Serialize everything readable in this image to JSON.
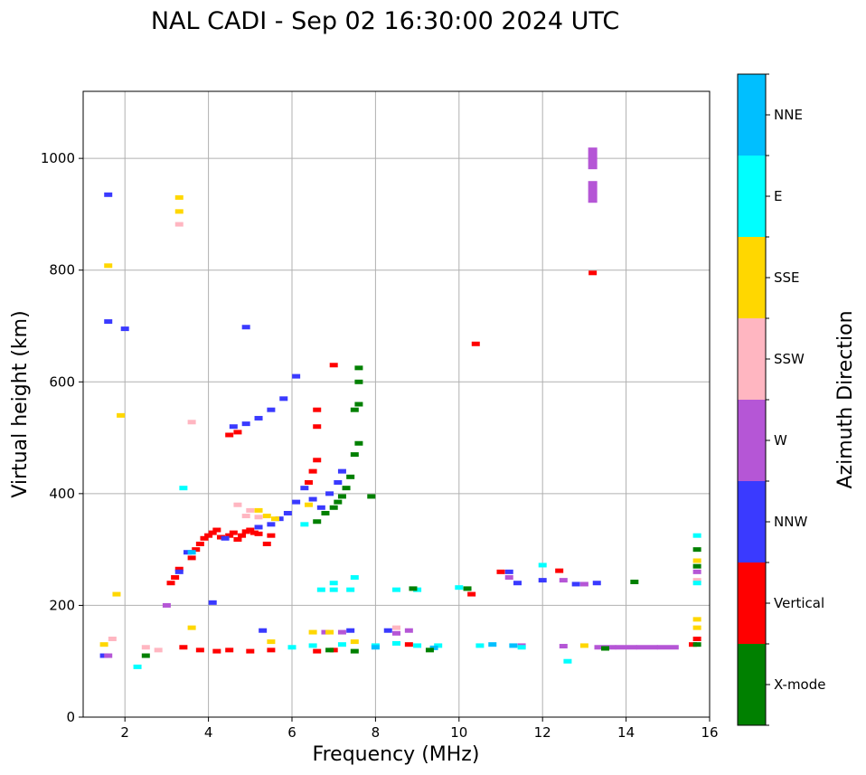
{
  "chart_data": {
    "type": "scatter",
    "title": "NAL CADI - Sep 02 16:30:00 2024 UTC",
    "xlabel": "Frequency (MHz)",
    "ylabel": "Virtual height (km)",
    "xlim": [
      1,
      16
    ],
    "ylim": [
      0,
      1120
    ],
    "xticks": [
      2,
      4,
      6,
      8,
      10,
      12,
      14,
      16
    ],
    "yticks": [
      0,
      200,
      400,
      600,
      800,
      1000
    ],
    "grid": true,
    "colorbar": {
      "label": "Azimuth Direction",
      "categories": [
        {
          "name": "X-mode",
          "color": "#008000"
        },
        {
          "name": "Vertical",
          "color": "#ff0000"
        },
        {
          "name": "NNW",
          "color": "#3a3aff"
        },
        {
          "name": "W",
          "color": "#b556d6"
        },
        {
          "name": "SSW",
          "color": "#ffb6c1"
        },
        {
          "name": "SSE",
          "color": "#ffd700"
        },
        {
          "name": "E",
          "color": "#00ffff"
        },
        {
          "name": "NNE",
          "color": "#00bfff"
        }
      ]
    },
    "series": [
      {
        "name": "Vertical",
        "points": [
          [
            3.1,
            240
          ],
          [
            3.2,
            250
          ],
          [
            3.3,
            265
          ],
          [
            3.6,
            285
          ],
          [
            3.7,
            300
          ],
          [
            3.8,
            310
          ],
          [
            3.9,
            320
          ],
          [
            4.0,
            325
          ],
          [
            4.1,
            330
          ],
          [
            4.2,
            335
          ],
          [
            4.3,
            322
          ],
          [
            4.5,
            325
          ],
          [
            4.6,
            330
          ],
          [
            4.7,
            318
          ],
          [
            4.8,
            325
          ],
          [
            4.9,
            332
          ],
          [
            5.0,
            335
          ],
          [
            5.1,
            330
          ],
          [
            5.2,
            328
          ],
          [
            5.4,
            310
          ],
          [
            5.5,
            325
          ],
          [
            6.4,
            420
          ],
          [
            6.5,
            440
          ],
          [
            6.6,
            460
          ],
          [
            6.6,
            520
          ],
          [
            6.6,
            550
          ],
          [
            4.5,
            505
          ],
          [
            4.7,
            510
          ],
          [
            10.4,
            668
          ],
          [
            13.2,
            795
          ],
          [
            3.4,
            125
          ],
          [
            3.8,
            120
          ],
          [
            4.2,
            118
          ],
          [
            4.5,
            120
          ],
          [
            5.0,
            118
          ],
          [
            5.5,
            120
          ],
          [
            6.6,
            118
          ],
          [
            7.0,
            120
          ],
          [
            8.8,
            130
          ],
          [
            15.6,
            130
          ],
          [
            15.7,
            140
          ],
          [
            10.3,
            220
          ],
          [
            11.0,
            260
          ],
          [
            12.4,
            262
          ],
          [
            7.0,
            630
          ]
        ]
      },
      {
        "name": "NNW",
        "points": [
          [
            3.3,
            260
          ],
          [
            3.5,
            295
          ],
          [
            4.4,
            320
          ],
          [
            5.2,
            340
          ],
          [
            5.5,
            345
          ],
          [
            5.7,
            355
          ],
          [
            5.9,
            365
          ],
          [
            6.1,
            385
          ],
          [
            6.3,
            410
          ],
          [
            6.5,
            390
          ],
          [
            6.7,
            375
          ],
          [
            6.9,
            400
          ],
          [
            7.1,
            420
          ],
          [
            7.2,
            440
          ],
          [
            4.6,
            520
          ],
          [
            4.9,
            525
          ],
          [
            5.2,
            535
          ],
          [
            5.5,
            550
          ],
          [
            5.8,
            570
          ],
          [
            6.1,
            610
          ],
          [
            1.6,
            935
          ],
          [
            4.9,
            698
          ],
          [
            2.0,
            695
          ],
          [
            1.6,
            708
          ],
          [
            4.1,
            205
          ],
          [
            5.3,
            155
          ],
          [
            7.4,
            155
          ],
          [
            8.3,
            155
          ],
          [
            11.2,
            260
          ],
          [
            11.4,
            240
          ],
          [
            12.0,
            245
          ],
          [
            12.8,
            238
          ],
          [
            13.3,
            240
          ],
          [
            1.5,
            110
          ]
        ]
      },
      {
        "name": "W",
        "points": [
          [
            13.2,
            1000
          ],
          [
            13.2,
            940
          ],
          [
            14.0,
            125
          ],
          [
            14.5,
            125
          ],
          [
            15.0,
            125
          ],
          [
            13.5,
            125
          ],
          [
            12.5,
            127
          ],
          [
            11.5,
            128
          ],
          [
            8.8,
            155
          ],
          [
            8.5,
            150
          ],
          [
            7.2,
            152
          ],
          [
            6.8,
            152
          ],
          [
            11.2,
            250
          ],
          [
            12.5,
            245
          ],
          [
            13.0,
            238
          ],
          [
            15.7,
            260
          ],
          [
            3.0,
            200
          ],
          [
            1.6,
            110
          ]
        ]
      },
      {
        "name": "SSW",
        "points": [
          [
            4.9,
            360
          ],
          [
            5.0,
            370
          ],
          [
            5.2,
            358
          ],
          [
            4.7,
            380
          ],
          [
            3.3,
            882
          ],
          [
            3.6,
            528
          ],
          [
            2.5,
            125
          ],
          [
            2.8,
            120
          ],
          [
            8.5,
            160
          ],
          [
            1.7,
            140
          ],
          [
            15.7,
            245
          ]
        ]
      },
      {
        "name": "SSE",
        "points": [
          [
            5.2,
            370
          ],
          [
            5.4,
            360
          ],
          [
            5.6,
            355
          ],
          [
            6.4,
            380
          ],
          [
            6.5,
            152
          ],
          [
            6.9,
            152
          ],
          [
            3.3,
            930
          ],
          [
            3.3,
            905
          ],
          [
            1.6,
            808
          ],
          [
            1.9,
            540
          ],
          [
            1.8,
            220
          ],
          [
            1.5,
            130
          ],
          [
            3.6,
            160
          ],
          [
            15.7,
            175
          ],
          [
            15.7,
            160
          ],
          [
            15.7,
            280
          ],
          [
            13.0,
            128
          ],
          [
            7.5,
            135
          ],
          [
            5.5,
            135
          ]
        ]
      },
      {
        "name": "E",
        "points": [
          [
            6.7,
            228
          ],
          [
            7.0,
            228
          ],
          [
            7.4,
            228
          ],
          [
            8.5,
            228
          ],
          [
            9.0,
            228
          ],
          [
            10.0,
            232
          ],
          [
            7.0,
            240
          ],
          [
            7.5,
            250
          ],
          [
            6.0,
            125
          ],
          [
            6.5,
            128
          ],
          [
            7.2,
            130
          ],
          [
            8.0,
            128
          ],
          [
            8.5,
            132
          ],
          [
            9.0,
            128
          ],
          [
            9.5,
            128
          ],
          [
            10.5,
            128
          ],
          [
            11.5,
            125
          ],
          [
            12.6,
            100
          ],
          [
            12.0,
            272
          ],
          [
            15.7,
            325
          ],
          [
            15.7,
            240
          ],
          [
            2.3,
            90
          ],
          [
            6.3,
            345
          ],
          [
            3.4,
            410
          ]
        ]
      },
      {
        "name": "NNE",
        "points": [
          [
            3.6,
            295
          ],
          [
            8.0,
            125
          ],
          [
            9.4,
            124
          ],
          [
            10.8,
            130
          ],
          [
            11.3,
            128
          ]
        ]
      },
      {
        "name": "X-mode",
        "points": [
          [
            6.6,
            350
          ],
          [
            6.8,
            365
          ],
          [
            7.0,
            375
          ],
          [
            7.1,
            385
          ],
          [
            7.2,
            395
          ],
          [
            7.3,
            410
          ],
          [
            7.4,
            430
          ],
          [
            7.5,
            470
          ],
          [
            7.6,
            490
          ],
          [
            7.6,
            560
          ],
          [
            7.6,
            600
          ],
          [
            7.6,
            625
          ],
          [
            7.5,
            550
          ],
          [
            7.9,
            395
          ],
          [
            8.9,
            230
          ],
          [
            10.2,
            230
          ],
          [
            14.2,
            242
          ],
          [
            15.7,
            300
          ],
          [
            15.7,
            270
          ],
          [
            15.7,
            130
          ],
          [
            6.9,
            120
          ],
          [
            7.5,
            118
          ],
          [
            9.3,
            120
          ],
          [
            13.5,
            123
          ],
          [
            2.5,
            110
          ]
        ]
      }
    ]
  }
}
